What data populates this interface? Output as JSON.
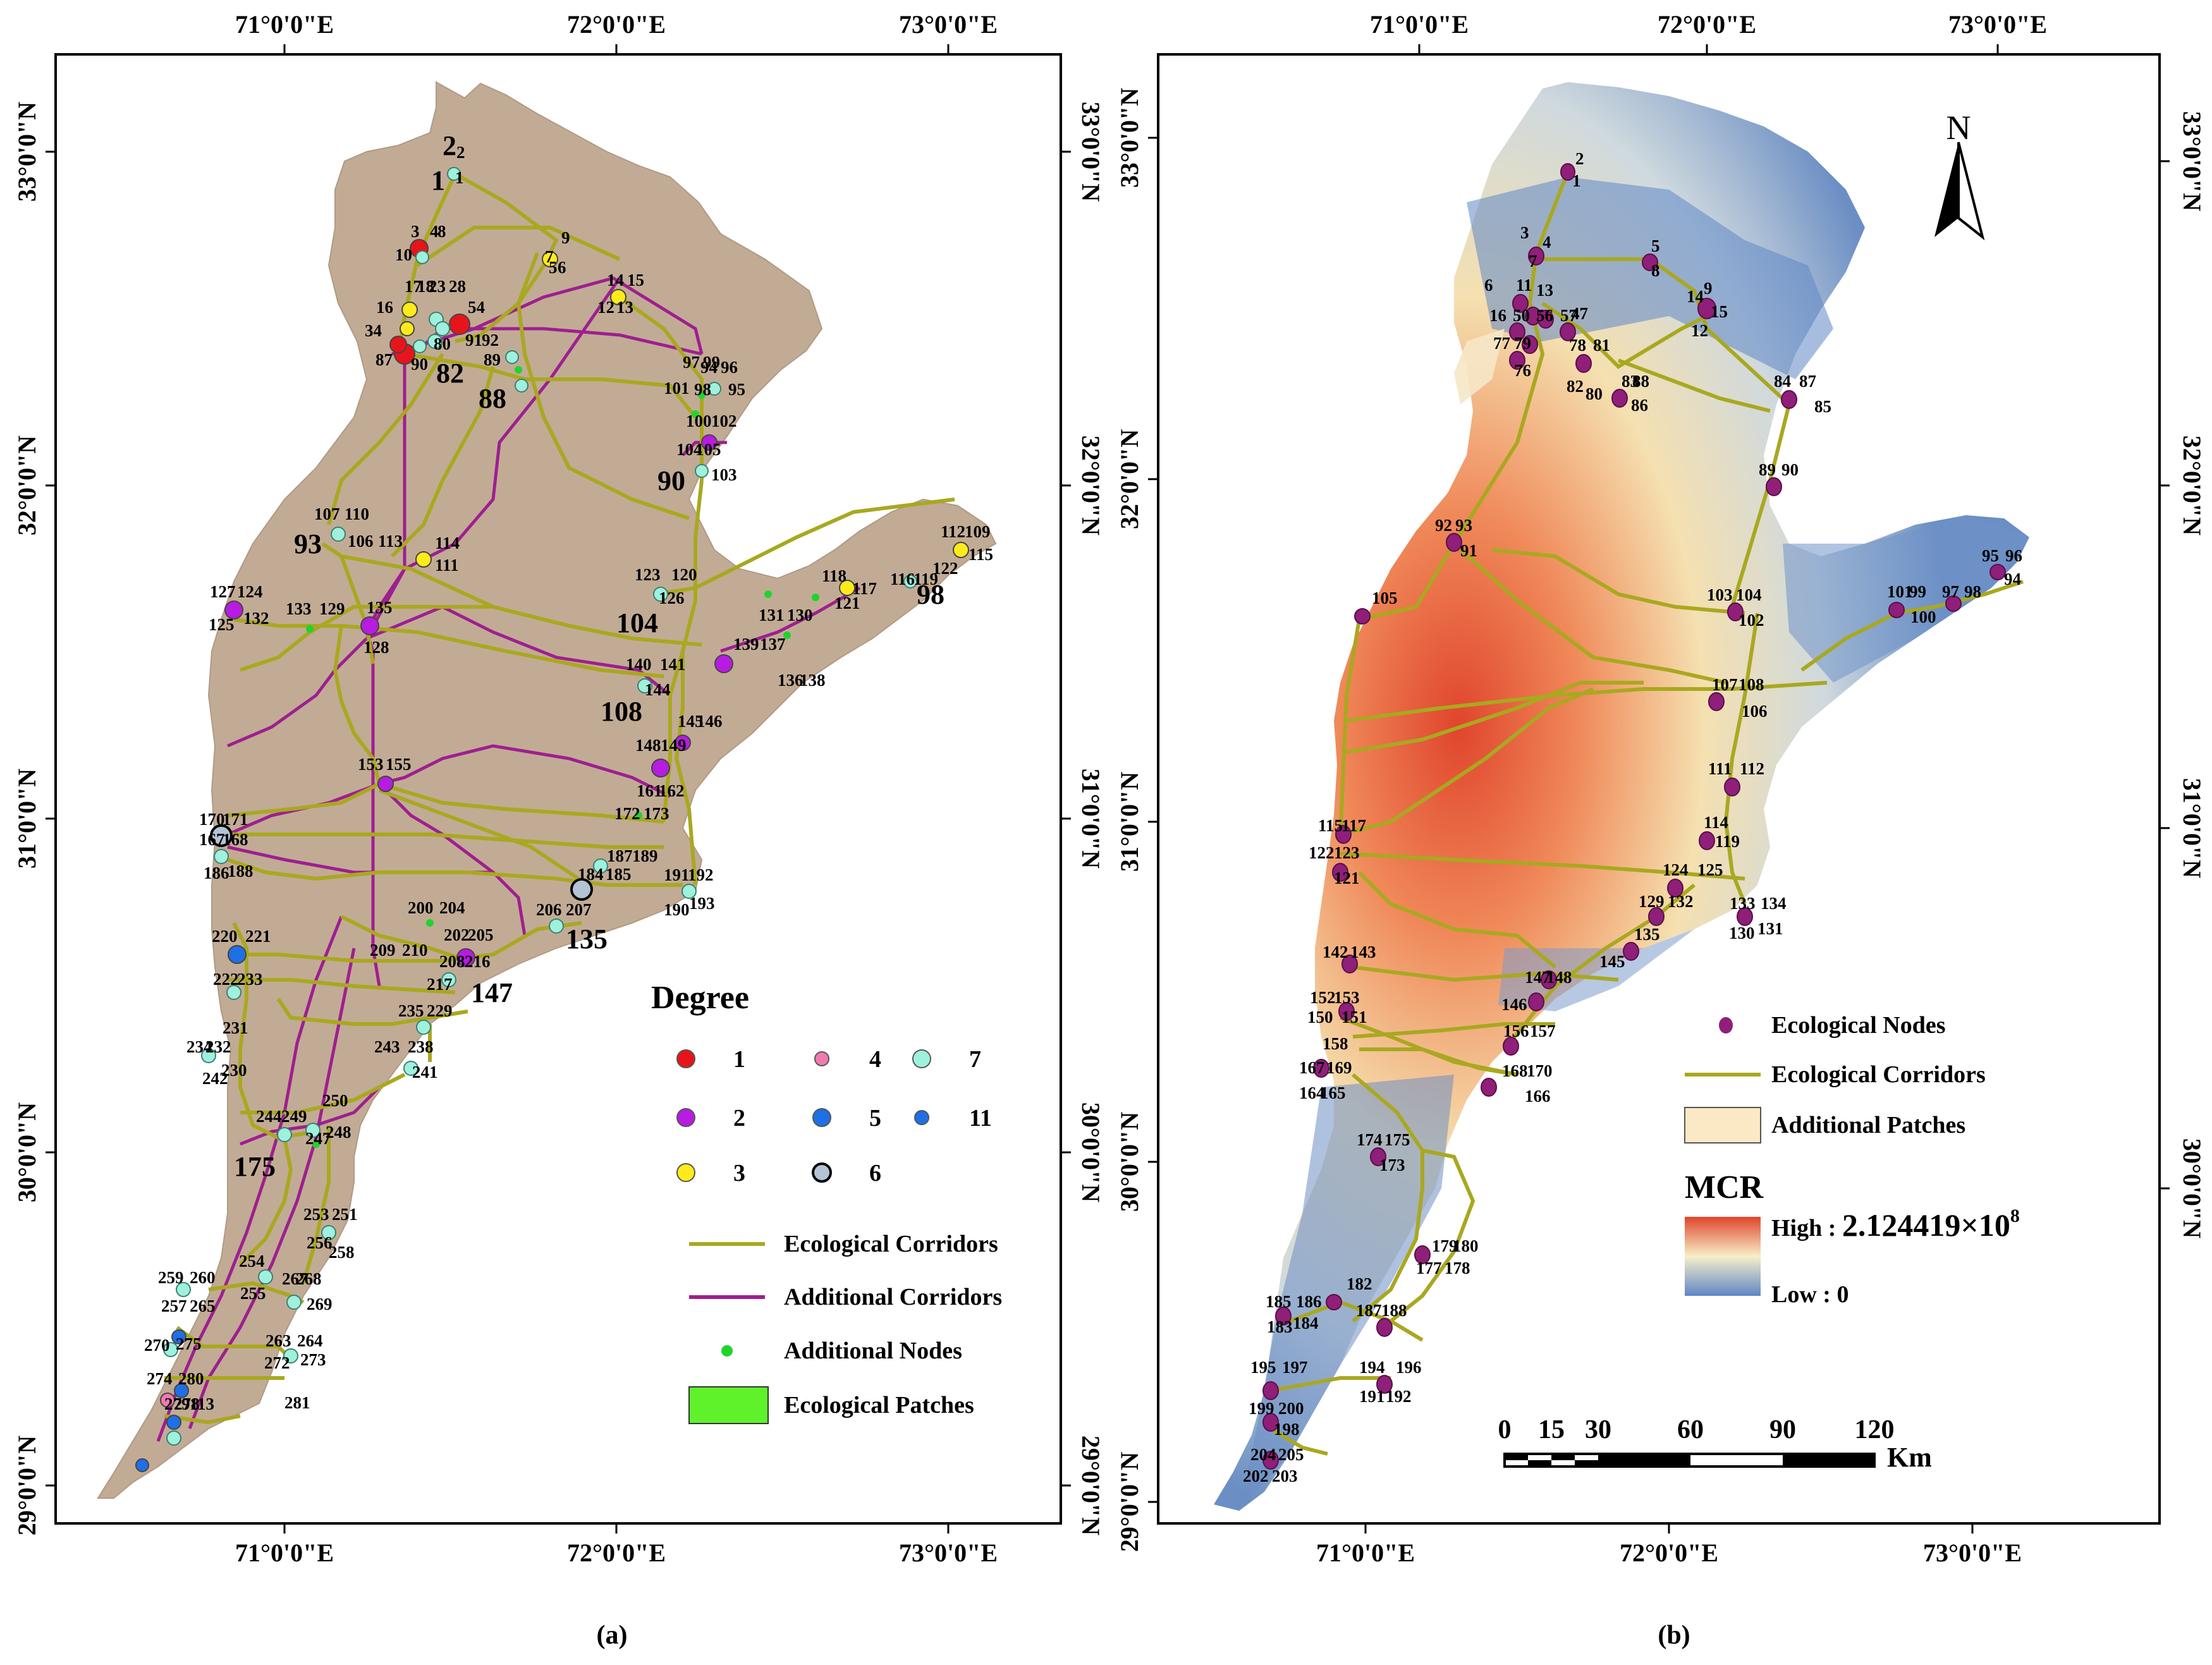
{
  "axis": {
    "lon_ticks": [
      "71°0'0\"E",
      "72°0'0\"E",
      "73°0'0\"E"
    ],
    "lat_ticks": [
      "33°0'0\"N",
      "32°0'0\"N",
      "31°0'0\"N",
      "30°0'0\"N",
      "29°0'0\"N"
    ]
  },
  "panel_a": {
    "caption": "(a)",
    "legend": {
      "title": "Degree",
      "degree_items": [
        {
          "label": "1",
          "color": "#e8141c"
        },
        {
          "label": "2",
          "color": "#b71ce0"
        },
        {
          "label": "3",
          "color": "#ffeb1a"
        },
        {
          "label": "4",
          "color": "#f07ab0"
        },
        {
          "label": "5",
          "color": "#1f6fe6"
        },
        {
          "label": "6",
          "color": "#b4c4d4"
        },
        {
          "label": "7",
          "color": "#9ff0dd"
        },
        {
          "label": "11",
          "color": "#1f6fe6"
        }
      ],
      "ecological_corridors": "Ecological Corridors",
      "additional_corridors": "Additional Corridors",
      "additional_nodes": "Additional Nodes",
      "ecological_patches": "Ecological Patches"
    },
    "big_labels": [
      "1",
      "2",
      "82",
      "88",
      "90",
      "93",
      "104",
      "98",
      "108",
      "135",
      "147",
      "175"
    ],
    "node_labels": [
      "1",
      "2",
      "3",
      "4",
      "8",
      "5",
      "6",
      "7",
      "9",
      "10",
      "14",
      "15",
      "12",
      "13",
      "16",
      "17",
      "18",
      "23",
      "28",
      "54",
      "34",
      "80",
      "91",
      "92",
      "89",
      "87",
      "90",
      "94",
      "96",
      "95",
      "97",
      "99",
      "98",
      "101",
      "100",
      "102",
      "103",
      "104",
      "105",
      "107",
      "110",
      "106",
      "113",
      "114",
      "111",
      "112",
      "109",
      "115",
      "116",
      "119",
      "122",
      "118",
      "117",
      "121",
      "123",
      "120",
      "126",
      "127",
      "124",
      "125",
      "132",
      "133",
      "129",
      "131",
      "130",
      "128",
      "135",
      "136",
      "138",
      "139",
      "137",
      "140",
      "141",
      "144",
      "145",
      "146",
      "148",
      "149",
      "153",
      "155",
      "161",
      "162",
      "172",
      "173",
      "170",
      "171",
      "167",
      "168",
      "186",
      "188",
      "187",
      "189",
      "184",
      "185",
      "191",
      "192",
      "190",
      "193",
      "200",
      "204",
      "206",
      "207",
      "202",
      "205",
      "209",
      "210",
      "208",
      "216",
      "217",
      "220",
      "221",
      "222",
      "233",
      "235",
      "229",
      "231",
      "232",
      "234",
      "230",
      "242",
      "243",
      "238",
      "241",
      "244",
      "249",
      "250",
      "247",
      "248",
      "253",
      "251",
      "256",
      "258",
      "254",
      "255",
      "259",
      "260",
      "257",
      "265",
      "267",
      "268",
      "269",
      "263",
      "264",
      "272",
      "273",
      "270",
      "275",
      "274",
      "280",
      "281",
      "278",
      "279",
      "113"
    ]
  },
  "panel_b": {
    "caption": "(b)",
    "north": "N",
    "legend": {
      "ecological_nodes": "Ecological Nodes",
      "ecological_corridors": "Ecological Corridors",
      "additional_patches": "Additional Patches",
      "mcr_title": "MCR",
      "high_label": "High : ",
      "high_value": "2.124419×10",
      "high_exp": "8",
      "low_label": "Low : 0"
    },
    "scale_bar": {
      "ticks": [
        "0",
        "15",
        "30",
        "60",
        "90",
        "120"
      ],
      "unit": "Km"
    },
    "node_labels": [
      "1",
      "2",
      "3",
      "4",
      "7",
      "5",
      "8",
      "6",
      "11",
      "13",
      "16",
      "50",
      "56",
      "57",
      "47",
      "77",
      "79",
      "76",
      "78",
      "81",
      "82",
      "80",
      "83",
      "88",
      "86",
      "14",
      "9",
      "15",
      "12",
      "84",
      "87",
      "85",
      "89",
      "90",
      "92",
      "93",
      "91",
      "105",
      "103",
      "104",
      "102",
      "101",
      "99",
      "100",
      "97",
      "98",
      "95",
      "96",
      "94",
      "107",
      "108",
      "106",
      "111",
      "112",
      "114",
      "119",
      "115",
      "117",
      "122",
      "123",
      "121",
      "124",
      "125",
      "129",
      "132",
      "133",
      "134",
      "130",
      "131",
      "135",
      "142",
      "143",
      "145",
      "147",
      "148",
      "146",
      "152",
      "153",
      "150",
      "151",
      "158",
      "156",
      "157",
      "167",
      "169",
      "164",
      "165",
      "168",
      "170",
      "166",
      "174",
      "175",
      "173",
      "179",
      "180",
      "177",
      "178",
      "182",
      "185",
      "186",
      "183",
      "184",
      "187",
      "188",
      "194",
      "196",
      "191",
      "192",
      "195",
      "197",
      "199",
      "200",
      "198",
      "204",
      "205",
      "202",
      "203"
    ]
  }
}
